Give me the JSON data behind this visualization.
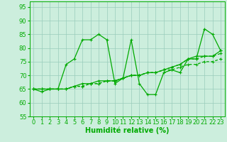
{
  "xlabel": "Humidité relative (%)",
  "xlim": [
    -0.5,
    23.5
  ],
  "ylim": [
    55,
    97
  ],
  "yticks": [
    55,
    60,
    65,
    70,
    75,
    80,
    85,
    90,
    95
  ],
  "xticks": [
    0,
    1,
    2,
    3,
    4,
    5,
    6,
    7,
    8,
    9,
    10,
    11,
    12,
    13,
    14,
    15,
    16,
    17,
    18,
    19,
    20,
    21,
    22,
    23
  ],
  "bg_color": "#cceedd",
  "grid_color": "#99ccbb",
  "line_color": "#00aa00",
  "series1": [
    65,
    64,
    65,
    65,
    74,
    76,
    83,
    83,
    85,
    83,
    67,
    69,
    83,
    67,
    63,
    63,
    71,
    72,
    71,
    76,
    76,
    87,
    85,
    79
  ],
  "series2": [
    65,
    65,
    65,
    65,
    65,
    66,
    66,
    67,
    67,
    68,
    68,
    69,
    70,
    70,
    71,
    71,
    72,
    72,
    73,
    74,
    74,
    75,
    75,
    76
  ],
  "series3": [
    65,
    65,
    65,
    65,
    65,
    66,
    66,
    67,
    67,
    68,
    68,
    69,
    70,
    70,
    71,
    71,
    72,
    73,
    74,
    76,
    76,
    77,
    77,
    78
  ],
  "series4": [
    65,
    65,
    65,
    65,
    65,
    66,
    67,
    67,
    68,
    68,
    68,
    69,
    70,
    70,
    71,
    71,
    72,
    73,
    74,
    76,
    77,
    77,
    77,
    79
  ],
  "xlabel_fontsize": 7,
  "tick_fontsize": 6,
  "marker": "+"
}
